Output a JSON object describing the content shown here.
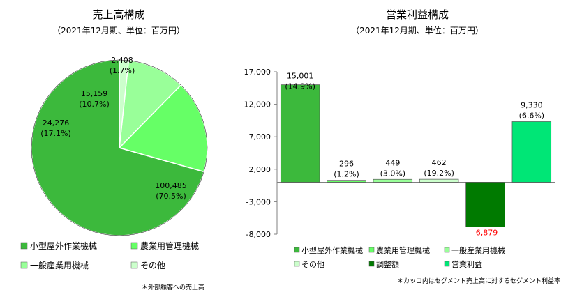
{
  "chart_data": [
    {
      "type": "pie",
      "title": "売上高構成",
      "subtitle": "（2021年12月期、単位：百万円）",
      "slices": [
        {
          "name": "小型屋外作業機械",
          "value": 100485,
          "value_label": "100,485",
          "pct_label": "(70.5%)",
          "color": "#3cb93c"
        },
        {
          "name": "農業用管理機械",
          "value": 24276,
          "value_label": "24,276",
          "pct_label": "(17.1%)",
          "color": "#66ff66"
        },
        {
          "name": "一般産業用機械",
          "value": 15159,
          "value_label": "15,159",
          "pct_label": "(10.7%)",
          "color": "#99ff99"
        },
        {
          "name": "その他",
          "value": 2408,
          "value_label": "2,408",
          "pct_label": "(1.7%)",
          "color": "#ccffcc"
        }
      ],
      "legend": [
        "小型屋外作業機械",
        "農業用管理機械",
        "一般産業用機械",
        "その他"
      ],
      "footnote": "＊外部顧客への売上高"
    },
    {
      "type": "bar",
      "title": "営業利益構成",
      "subtitle": "（2021年12月期、単位：百万円）",
      "ylim": [
        -8000,
        17000
      ],
      "yticks": [
        17000,
        12000,
        7000,
        2000,
        -3000,
        -8000
      ],
      "ytick_labels": [
        "17,000",
        "12,000",
        "7,000",
        "2,000",
        "-3,000",
        "-8,000"
      ],
      "categories": [
        "小型屋外作業機械",
        "農業用管理機械",
        "一般産業用機械",
        "その他",
        "調整額",
        "営業利益"
      ],
      "values": [
        15001,
        296,
        449,
        462,
        -6879,
        9330
      ],
      "value_labels": [
        "15,001",
        "296",
        "449",
        "462",
        "-6,879",
        "9,330"
      ],
      "pct_labels": [
        "(14.9%)",
        "(1.2%)",
        "(3.0%)",
        "(19.2%)",
        "",
        "(6.6%)"
      ],
      "colors": [
        "#3cb93c",
        "#66ff66",
        "#99ff99",
        "#ccffcc",
        "#007a00",
        "#00e676"
      ],
      "negative_label_color": "#ff0000",
      "legend": [
        "小型屋外作業機械",
        "農業用管理機械",
        "一般産業用機械",
        "その他",
        "調整額",
        "営業利益"
      ],
      "footnote": "＊カッコ内はセグメント売上高に対するセグメント利益率"
    }
  ]
}
